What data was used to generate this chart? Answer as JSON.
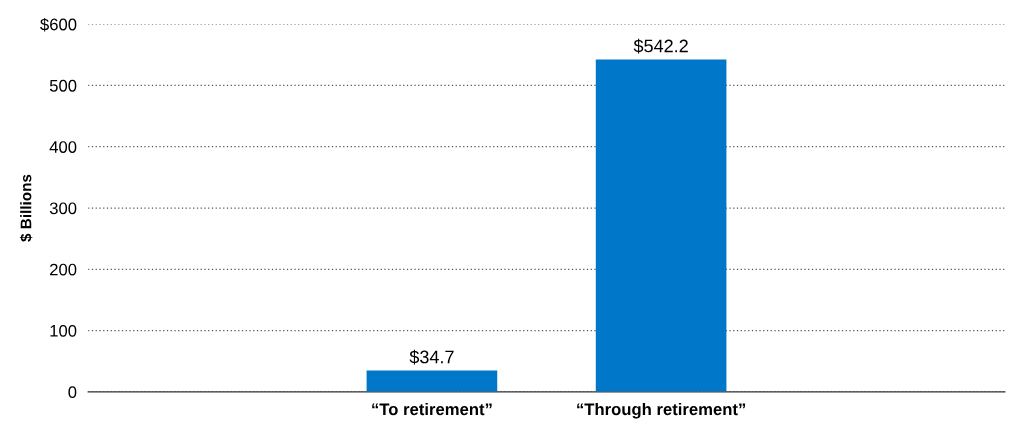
{
  "chart_data": {
    "type": "bar",
    "ylabel": "$ Billions",
    "categories": [
      null,
      "“To retirement”",
      "“Through retirement”",
      null
    ],
    "values": [
      null,
      34.7,
      542.2,
      null
    ],
    "value_labels": [
      null,
      "$34.7",
      "$542.2",
      null
    ],
    "color": "#0077c8",
    "ylim": [
      0,
      600
    ],
    "yticks": [
      0,
      100,
      200,
      300,
      400,
      500,
      {
        "value": 600,
        "label": "$600"
      }
    ],
    "grid": "y",
    "legend": false
  }
}
